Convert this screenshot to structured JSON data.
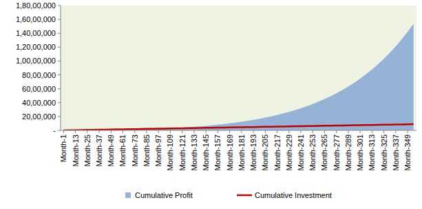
{
  "chart_data": {
    "type": "area",
    "categories": [
      "Month-1",
      null,
      "Month-13",
      null,
      "Month-25",
      null,
      "Month-37",
      null,
      "Month-49",
      null,
      "Month-61",
      null,
      "Month-73",
      null,
      "Month-85",
      null,
      "Month-97",
      null,
      "Month-109",
      null,
      "Month-121",
      null,
      "Month-133",
      null,
      "Month-145",
      null,
      "Month-157",
      null,
      "Month-169",
      null,
      "Month-181",
      null,
      "Month-193",
      null,
      "Month-205",
      null,
      "Month-217",
      null,
      "Month-229",
      null,
      "Month-241",
      null,
      "Month-253",
      null,
      "Month-265",
      null,
      "Month-277",
      null,
      "Month-289",
      null,
      "Month-301",
      null,
      "Month-313",
      null,
      "Month-325",
      null,
      "Month-337",
      null,
      "Month-349",
      null
    ],
    "series": [
      {
        "name": "Cumulative Profit",
        "type": "area",
        "color": "#95b3d7",
        "values": [
          0,
          1000,
          3000,
          6000,
          10000,
          16000,
          24000,
          34000,
          45000,
          59000,
          74000,
          92000,
          113000,
          136000,
          162000,
          192000,
          225000,
          261000,
          302000,
          347000,
          397000,
          451000,
          511000,
          577000,
          649000,
          728000,
          814000,
          907000,
          1010000,
          1121000,
          1242000,
          1374000,
          1517000,
          1672000,
          1840000,
          2023000,
          2220000,
          2435000,
          2667000,
          2918000,
          3190000,
          3483000,
          3801000,
          4145000,
          4516000,
          4917000,
          5351000,
          5819000,
          6324000,
          6870000,
          7459000,
          8095000,
          8782000,
          9522000,
          10321000,
          11183000,
          12113000,
          13116000,
          14198000,
          15365000
        ]
      },
      {
        "name": "Cumulative Investment",
        "type": "line",
        "color": "#c00000",
        "values": [
          2500,
          17500,
          32500,
          47500,
          62500,
          77500,
          92500,
          107500,
          122500,
          137500,
          152500,
          167500,
          182500,
          197500,
          212500,
          227500,
          242500,
          257500,
          272500,
          287500,
          302500,
          317500,
          332500,
          347500,
          362500,
          377500,
          392500,
          407500,
          422500,
          437500,
          452500,
          467500,
          482500,
          497500,
          512500,
          527500,
          542500,
          557500,
          572500,
          587500,
          602500,
          617500,
          632500,
          647500,
          662500,
          677500,
          692500,
          707500,
          722500,
          737500,
          752500,
          767500,
          782500,
          797500,
          812500,
          827500,
          842500,
          857500,
          872500,
          887500
        ]
      }
    ],
    "ylim": [
      0,
      18000000
    ],
    "yticks": [
      {
        "value": 0,
        "label": "-"
      },
      {
        "value": 2000000,
        "label": "20,00,000"
      },
      {
        "value": 4000000,
        "label": "40,00,000"
      },
      {
        "value": 6000000,
        "label": "60,00,000"
      },
      {
        "value": 8000000,
        "label": "80,00,000"
      },
      {
        "value": 10000000,
        "label": "1,00,00,000"
      },
      {
        "value": 12000000,
        "label": "1,20,00,000"
      },
      {
        "value": 14000000,
        "label": "1,40,00,000"
      },
      {
        "value": 16000000,
        "label": "1,60,00,000"
      },
      {
        "value": 18000000,
        "label": "1,80,00,000"
      }
    ],
    "grid": false,
    "legend": "bottom"
  }
}
